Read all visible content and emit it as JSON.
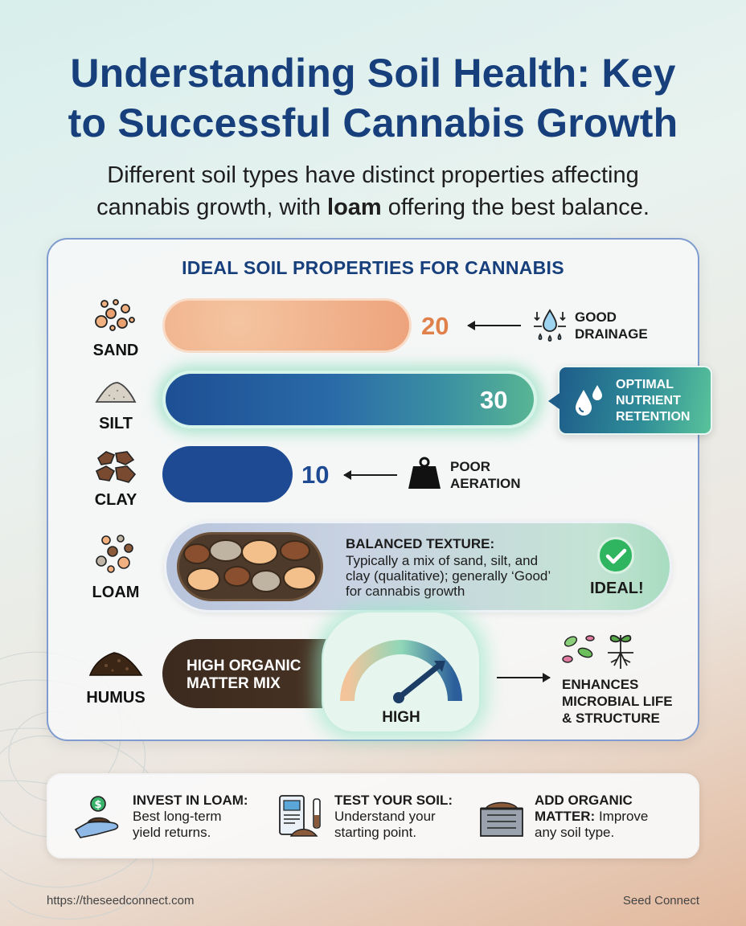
{
  "header": {
    "title_line1": "Understanding Soil Health: Key",
    "title_line2": "to Successful Cannabis Growth",
    "subtitle_line1": "Different soil types have distinct properties affecting",
    "subtitle_line2_pre": "cannabis growth, with ",
    "subtitle_line2_bold": "loam",
    "subtitle_line2_post": " offering the best balance."
  },
  "panel": {
    "title": "IDEAL SOIL PROPERTIES FOR CANNABIS"
  },
  "soils": {
    "sand": {
      "label": "SAND",
      "value": "20",
      "value_color": "#e0814c",
      "note_line1": "GOOD",
      "note_line2": "DRAINAGE",
      "icon": "sand-grains-icon"
    },
    "silt": {
      "label": "SILT",
      "value": "30",
      "value_color": "#ffffff",
      "callout_line1": "OPTIMAL",
      "callout_line2": "NUTRIENT",
      "callout_line3": "RETENTION",
      "icon": "silt-pile-icon"
    },
    "clay": {
      "label": "CLAY",
      "value": "10",
      "value_color": "#1d4a92",
      "note_line1": "POOR",
      "note_line2": "AERATION",
      "icon": "clay-clumps-icon"
    },
    "loam": {
      "label": "LOAM",
      "heading": "BALANCED TEXTURE:",
      "desc_line1": "Typically a mix of sand, silt, and",
      "desc_line2": "clay (qualitative); generally ‘Good’",
      "desc_line3": "for cannabis growth",
      "badge": "IDEAL!",
      "icon": "loam-mix-icon"
    },
    "humus": {
      "label": "HUMUS",
      "bar_line1": "HIGH ORGANIC",
      "bar_line2": "MATTER MIX",
      "gauge_label": "HIGH",
      "effect_line1": "ENHANCES",
      "effect_line2": "MICROBIAL LIFE",
      "effect_line3": "& STRUCTURE",
      "icon": "humus-pile-icon"
    }
  },
  "tips": [
    {
      "bold": "INVEST IN LOAM:",
      "line1": "Best long-term",
      "line2": "yield returns.",
      "icon": "money-hand-icon"
    },
    {
      "bold": "TEST YOUR SOIL:",
      "line1": "Understand your",
      "line2": "starting point.",
      "icon": "soil-test-icon"
    },
    {
      "bold": "ADD ORGANIC",
      "bold2": "MATTER:",
      "line1": " Improve",
      "line2": "any soil type.",
      "icon": "compost-bin-icon"
    }
  ],
  "footer": {
    "url": "https://theseedconnect.com",
    "brand": "Seed Connect"
  },
  "colors": {
    "title": "#173f7c",
    "panel_border": "#7f9bcf",
    "sand": "#eda37c",
    "silt": "#1d4f94",
    "clay": "#1d4a92",
    "humus": "#3b2a1f",
    "ideal_green": "#2fb55f"
  }
}
